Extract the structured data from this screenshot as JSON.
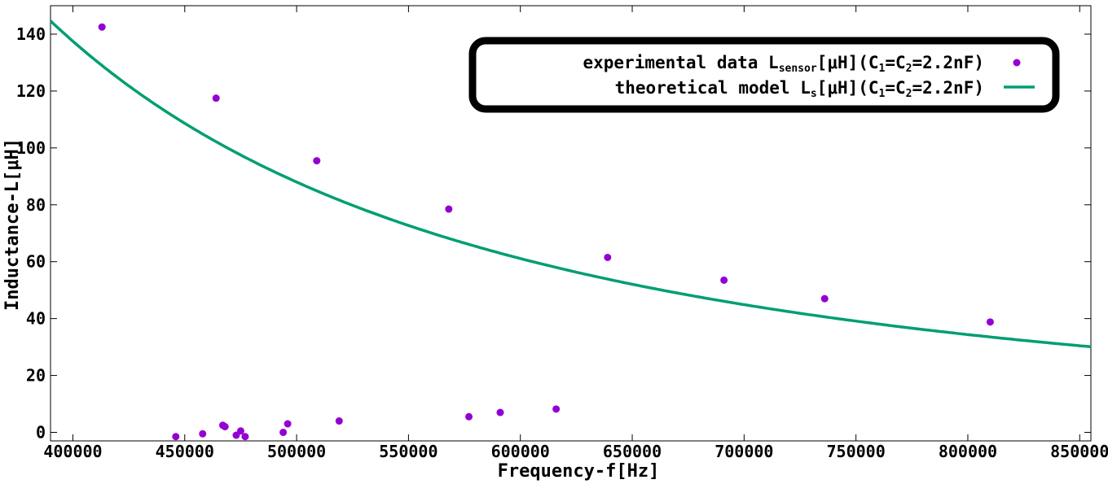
{
  "chart_data": {
    "type": "scatter",
    "xlabel": "Frequency-f[Hz]",
    "ylabel": "Inductance-L[μH]",
    "xlim": [
      390000,
      855000
    ],
    "ylim": [
      -3,
      150
    ],
    "x_ticks": [
      400000,
      450000,
      500000,
      550000,
      600000,
      650000,
      700000,
      750000,
      800000,
      850000
    ],
    "y_ticks": [
      0,
      20,
      40,
      60,
      80,
      100,
      120,
      140
    ],
    "grid": false,
    "legend_position": "top-right",
    "series": [
      {
        "name": "experimental data L_sensor[μH](C1=C2=2.2nF)",
        "legend": {
          "prefix": "experimental data L",
          "sub": "sensor",
          "suffix": "[μH](C",
          "c1": "1",
          "mid": "=C",
          "c2": "2",
          "end": "=2.2nF)"
        },
        "style": "points",
        "color": "#9400d3",
        "points": [
          [
            413000,
            142.5
          ],
          [
            464000,
            117.5
          ],
          [
            509000,
            95.5
          ],
          [
            568000,
            78.5
          ],
          [
            639000,
            61.5
          ],
          [
            691000,
            53.5
          ],
          [
            736000,
            47.0
          ],
          [
            810000,
            38.8
          ],
          [
            446000,
            -1.5
          ],
          [
            458000,
            -0.5
          ],
          [
            467000,
            2.5
          ],
          [
            468000,
            2.0
          ],
          [
            473000,
            -1.0
          ],
          [
            475000,
            0.5
          ],
          [
            477000,
            -1.5
          ],
          [
            494000,
            0.0
          ],
          [
            496000,
            3.0
          ],
          [
            519000,
            4.0
          ],
          [
            577000,
            5.5
          ],
          [
            591000,
            7.0
          ],
          [
            616000,
            8.2
          ]
        ]
      },
      {
        "name": "theoretical model L_s[μH](C1=C2=2.2nF)",
        "legend": {
          "prefix": "theoretical model L",
          "sub": "s",
          "suffix": "[μH](C",
          "c1": "1",
          "mid": "=C",
          "c2": "2",
          "end": "=2.2nF)"
        },
        "style": "line",
        "color": "#009e73",
        "model": {
          "form": "L = A / f^2",
          "A_uH_Hz2": 22000000000000
        }
      }
    ]
  }
}
